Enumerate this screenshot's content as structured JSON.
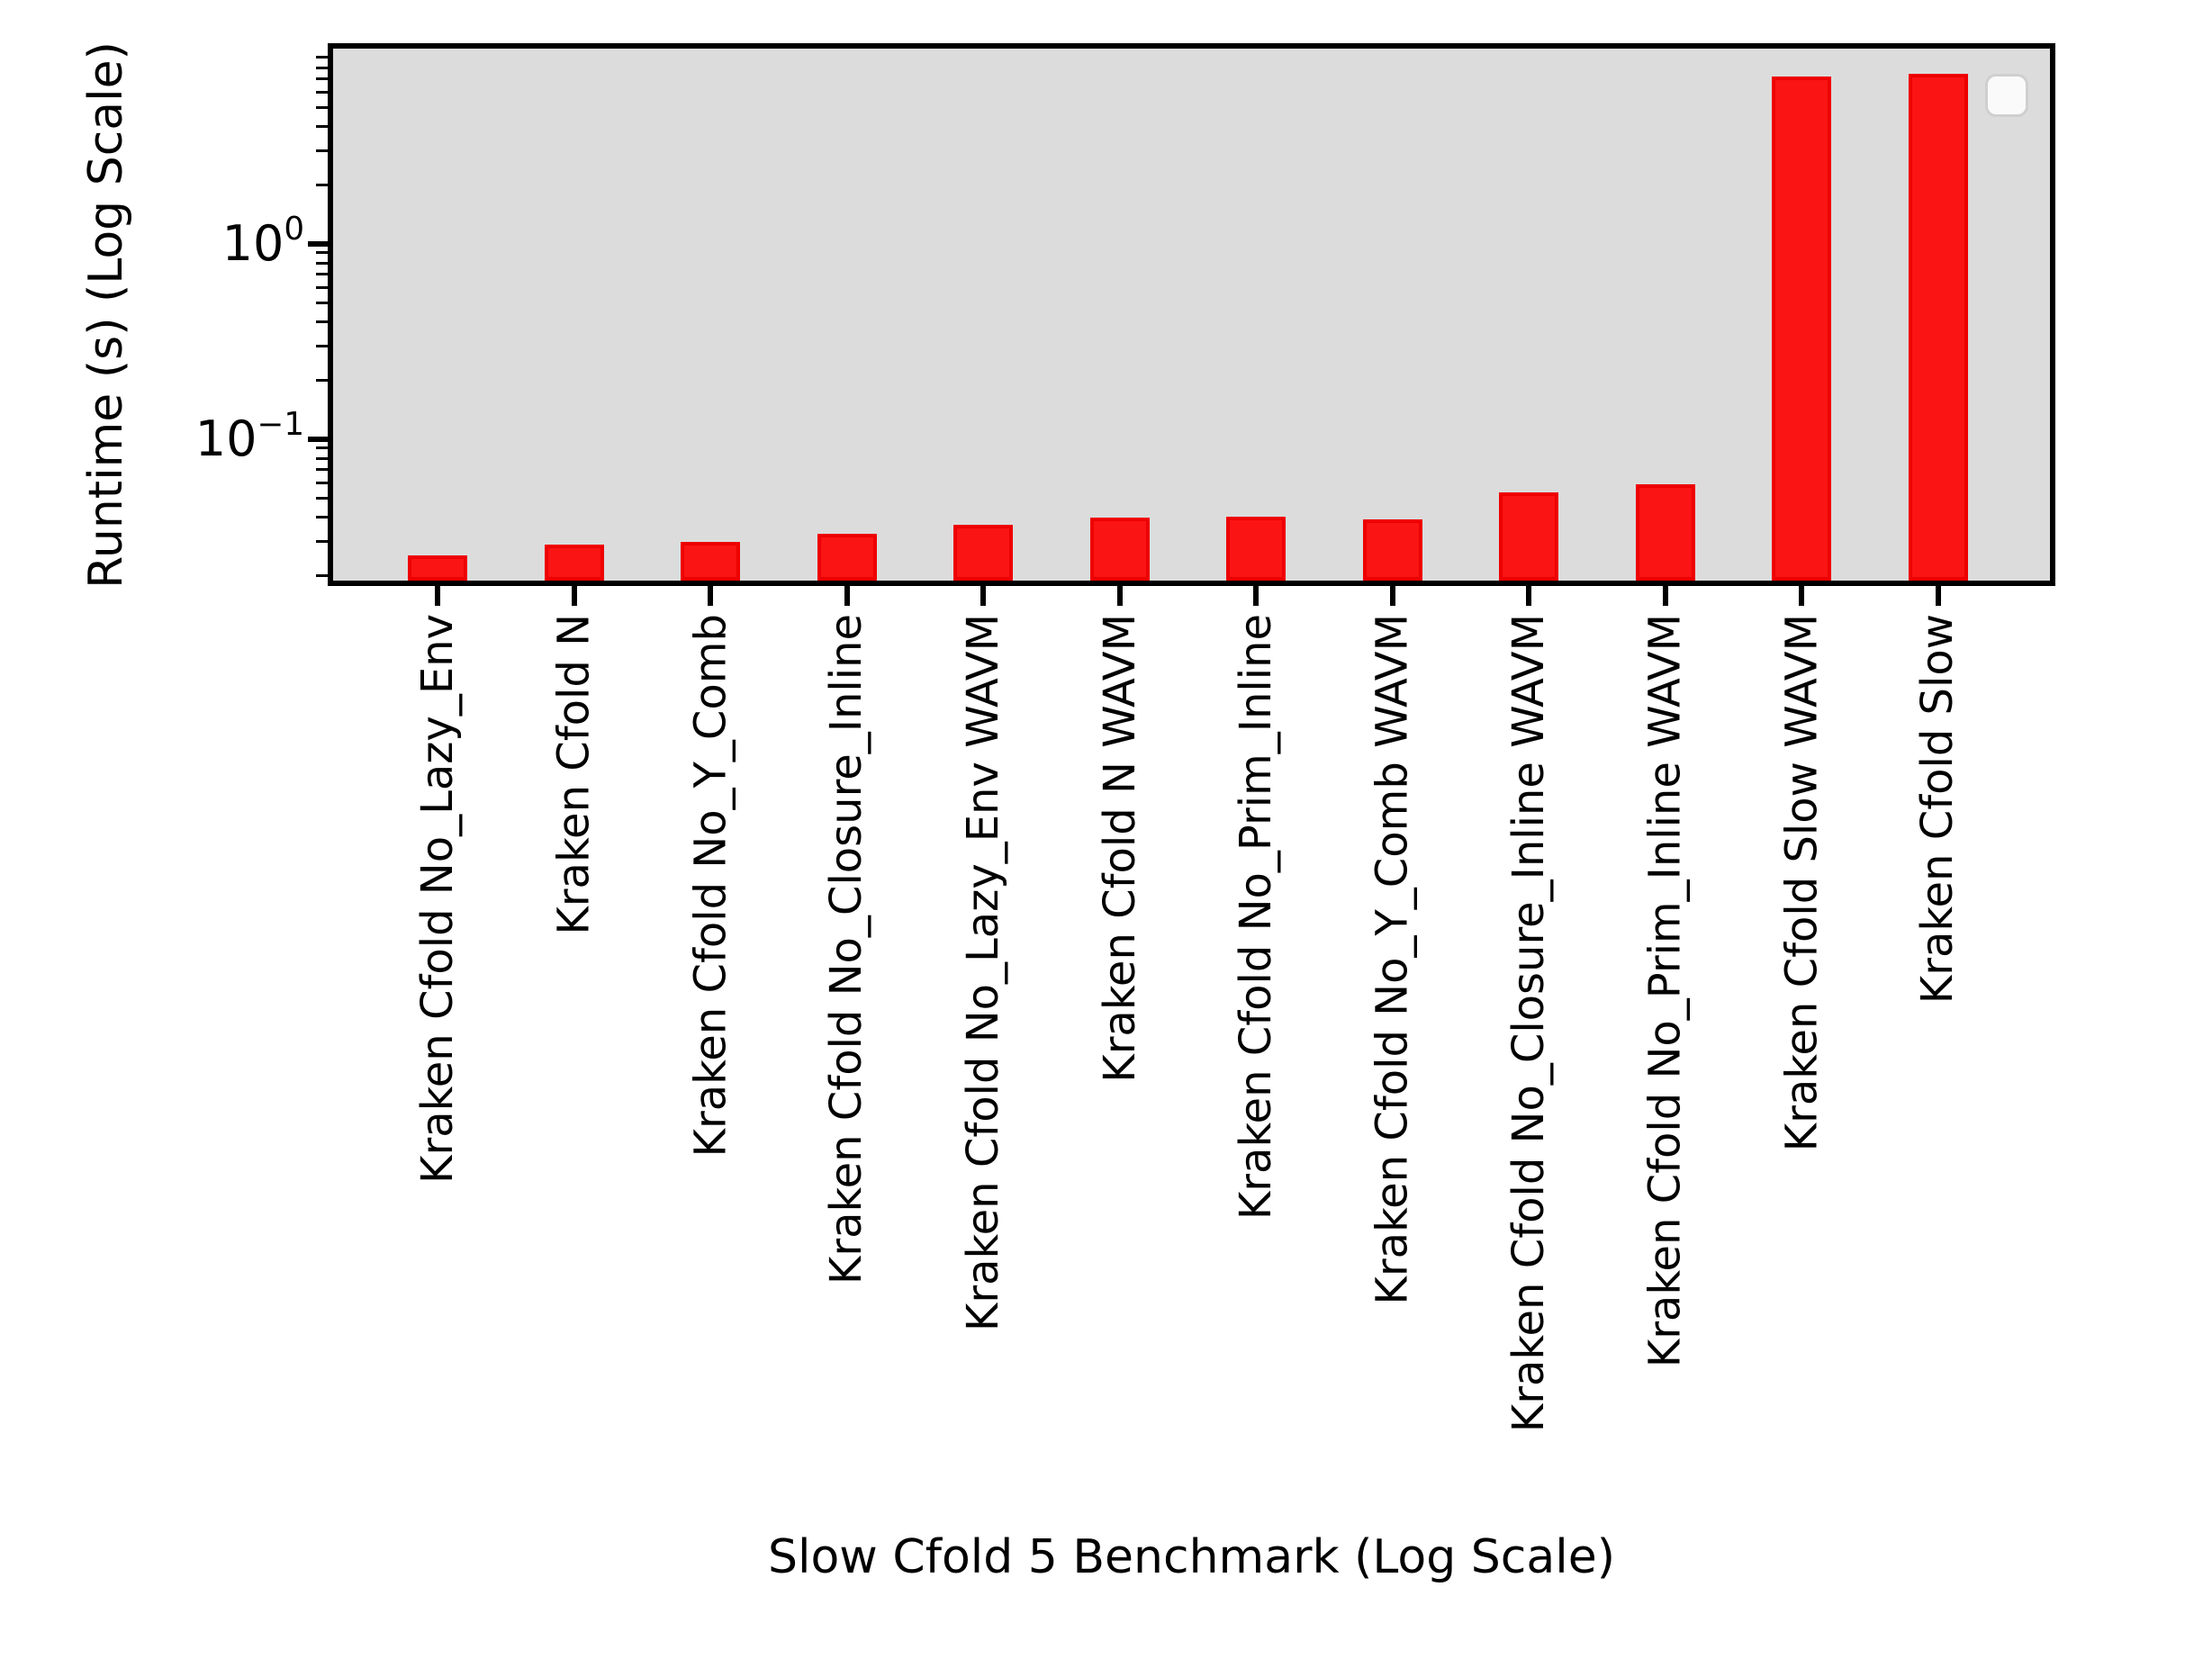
{
  "figure": {
    "background": "#ffffff",
    "plot_background": "#dcdcdc",
    "spine_color": "#000000",
    "text_color": "#000000"
  },
  "legend": {
    "visible": true,
    "entries": [],
    "location": "upper-right",
    "background": "#fafafa",
    "border_color": "#cfcfcf"
  },
  "chart_data": {
    "type": "bar",
    "title": "",
    "xlabel": "Slow Cfold 5 Benchmark (Log Scale)",
    "ylabel": "Runtime (s) (Log Scale)",
    "yscale": "log",
    "ylim": [
      0.019,
      9.7
    ],
    "grid": false,
    "legend_position": "upper right",
    "bar_fill_color": "#fa1414",
    "bar_edge_color": "#ee0000",
    "categories": [
      "Kraken Cfold No_Lazy_Env",
      "Kraken Cfold N",
      "Kraken Cfold No_Y_Comb",
      "Kraken Cfold No_Closure_Inline",
      "Kraken Cfold No_Lazy_Env WAVM",
      "Kraken Cfold N WAVM",
      "Kraken Cfold No_Prim_Inline",
      "Kraken Cfold No_Y_Comb WAVM",
      "Kraken Cfold No_Closure_Inline WAVM",
      "Kraken Cfold No_Prim_Inline WAVM",
      "Kraken Cfold Slow WAVM",
      "Kraken Cfold Slow"
    ],
    "values": [
      0.0255,
      0.0289,
      0.0297,
      0.0329,
      0.0365,
      0.0397,
      0.04,
      0.039,
      0.0535,
      0.059,
      7.2,
      7.4
    ],
    "yticks_major": [
      {
        "value": 1,
        "base": "10",
        "exponent": "0"
      },
      {
        "value": 0.1,
        "base": "10",
        "exponent": "−1"
      }
    ],
    "yticks_minor": [
      0.02,
      0.03,
      0.04,
      0.05,
      0.06,
      0.07,
      0.08,
      0.09,
      0.2,
      0.3,
      0.4,
      0.5,
      0.6,
      0.7,
      0.8,
      0.9,
      2,
      3,
      4,
      5,
      6,
      7,
      8,
      9
    ]
  }
}
